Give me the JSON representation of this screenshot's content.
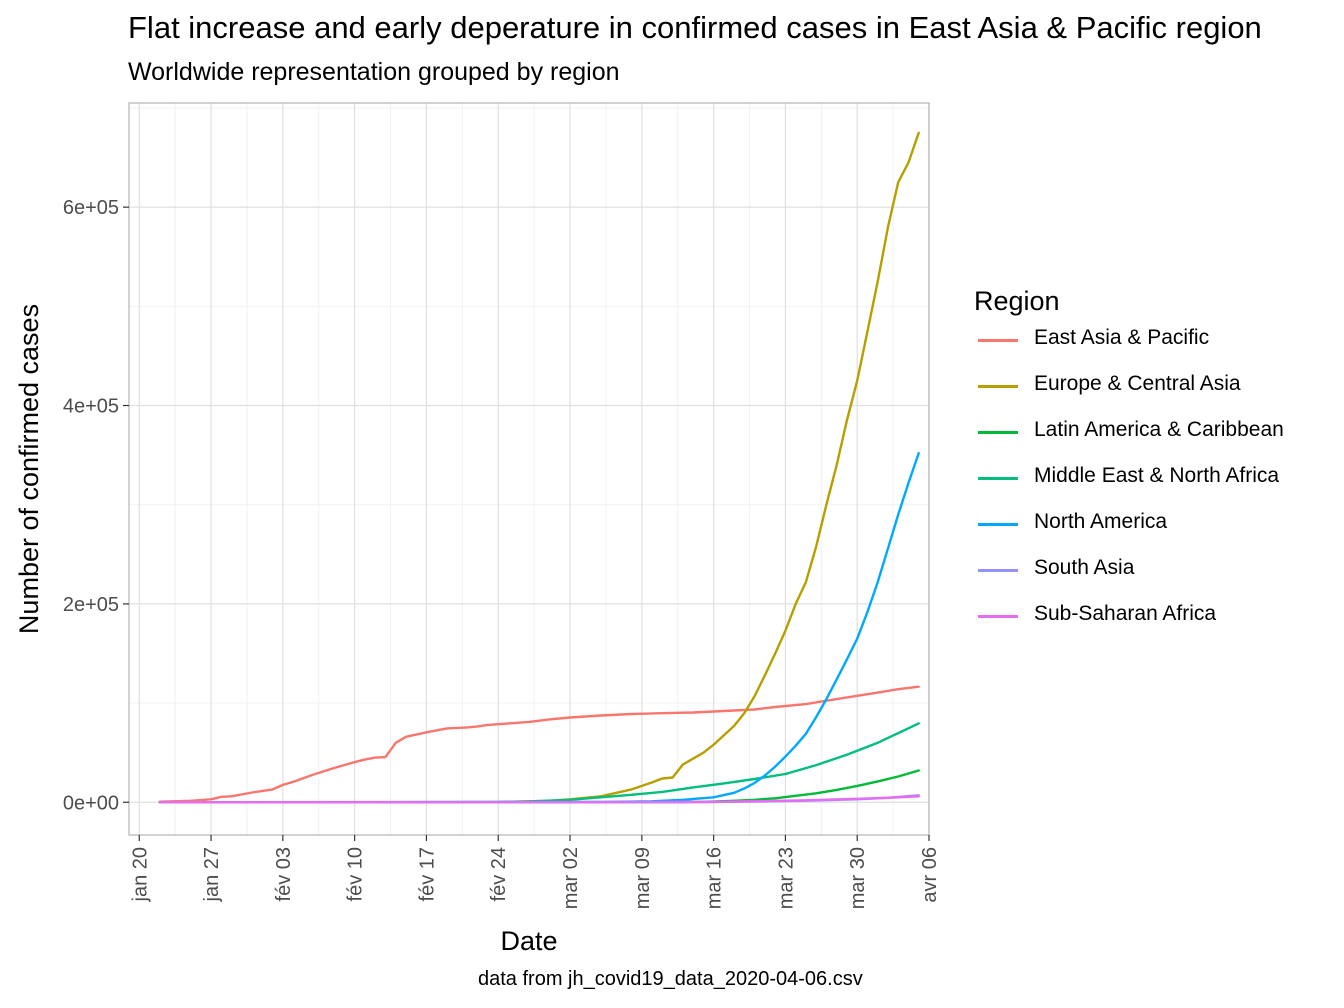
{
  "chart_data": {
    "type": "line",
    "title": "Flat increase and early deperature in confirmed cases in East Asia & Pacific region",
    "subtitle": "Worldwide representation grouped by region",
    "xlabel": "Date",
    "ylabel": "Number of confirmed cases",
    "caption": "data from jh_covid19_data_2020-04-06.csv",
    "legend_title": "Region",
    "legend_position": "right",
    "grid": true,
    "xlim": [
      "2020-01-19",
      "2020-04-06"
    ],
    "ylim": [
      -33000,
      705000
    ],
    "x_ticks": [
      "2020-01-20",
      "2020-01-27",
      "2020-02-03",
      "2020-02-10",
      "2020-02-17",
      "2020-02-24",
      "2020-03-02",
      "2020-03-09",
      "2020-03-16",
      "2020-03-23",
      "2020-03-30",
      "2020-04-06"
    ],
    "x_tick_labels": [
      "jan 20",
      "jan 27",
      "fév 03",
      "fév 10",
      "fév 17",
      "fév 24",
      "mar 02",
      "mar 09",
      "mar 16",
      "mar 23",
      "mar 30",
      "avr 06"
    ],
    "y_ticks": [
      0,
      200000,
      400000,
      600000
    ],
    "y_tick_labels": [
      "0e+00",
      "2e+05",
      "4e+05",
      "6e+05"
    ],
    "series": [
      {
        "name": "East Asia & Pacific",
        "color": "#F8766D",
        "points": [
          [
            "2020-01-22",
            550
          ],
          [
            "2020-01-25",
            1500
          ],
          [
            "2020-01-27",
            3000
          ],
          [
            "2020-01-28",
            5500
          ],
          [
            "2020-01-29",
            6000
          ],
          [
            "2020-01-31",
            9800
          ],
          [
            "2020-02-02",
            13000
          ],
          [
            "2020-02-03",
            17500
          ],
          [
            "2020-02-04",
            20500
          ],
          [
            "2020-02-06",
            28000
          ],
          [
            "2020-02-08",
            34500
          ],
          [
            "2020-02-10",
            40500
          ],
          [
            "2020-02-11",
            43000
          ],
          [
            "2020-02-12",
            45000
          ],
          [
            "2020-02-13",
            45500
          ],
          [
            "2020-02-14",
            60000
          ],
          [
            "2020-02-15",
            66000
          ],
          [
            "2020-02-17",
            70500
          ],
          [
            "2020-02-19",
            74500
          ],
          [
            "2020-02-21",
            75500
          ],
          [
            "2020-02-22",
            76500
          ],
          [
            "2020-02-23",
            78000
          ],
          [
            "2020-02-25",
            79500
          ],
          [
            "2020-02-27",
            81000
          ],
          [
            "2020-02-29",
            83500
          ],
          [
            "2020-03-02",
            85500
          ],
          [
            "2020-03-05",
            87500
          ],
          [
            "2020-03-08",
            89000
          ],
          [
            "2020-03-11",
            89800
          ],
          [
            "2020-03-14",
            90500
          ],
          [
            "2020-03-17",
            92000
          ],
          [
            "2020-03-20",
            93500
          ],
          [
            "2020-03-22",
            96000
          ],
          [
            "2020-03-25",
            99000
          ],
          [
            "2020-03-28",
            104000
          ],
          [
            "2020-03-31",
            109000
          ],
          [
            "2020-04-03",
            114000
          ],
          [
            "2020-04-05",
            116500
          ]
        ]
      },
      {
        "name": "Europe & Central Asia",
        "color": "#B79F00",
        "points": [
          [
            "2020-01-22",
            0
          ],
          [
            "2020-02-24",
            200
          ],
          [
            "2020-02-29",
            1500
          ],
          [
            "2020-03-02",
            3000
          ],
          [
            "2020-03-05",
            6000
          ],
          [
            "2020-03-08",
            13000
          ],
          [
            "2020-03-10",
            20000
          ],
          [
            "2020-03-11",
            24000
          ],
          [
            "2020-03-12",
            25000
          ],
          [
            "2020-03-13",
            38000
          ],
          [
            "2020-03-15",
            50000
          ],
          [
            "2020-03-16",
            58000
          ],
          [
            "2020-03-18",
            77000
          ],
          [
            "2020-03-19",
            90000
          ],
          [
            "2020-03-20",
            107000
          ],
          [
            "2020-03-21",
            128000
          ],
          [
            "2020-03-22",
            150000
          ],
          [
            "2020-03-23",
            173000
          ],
          [
            "2020-03-24",
            200000
          ],
          [
            "2020-03-25",
            222000
          ],
          [
            "2020-03-26",
            258000
          ],
          [
            "2020-03-27",
            300000
          ],
          [
            "2020-03-28",
            340000
          ],
          [
            "2020-03-29",
            385000
          ],
          [
            "2020-03-30",
            425000
          ],
          [
            "2020-03-31",
            475000
          ],
          [
            "2020-04-01",
            525000
          ],
          [
            "2020-04-02",
            580000
          ],
          [
            "2020-04-03",
            625000
          ],
          [
            "2020-04-04",
            645000
          ],
          [
            "2020-04-05",
            675000
          ]
        ]
      },
      {
        "name": "Latin America & Caribbean",
        "color": "#00BA38",
        "points": [
          [
            "2020-01-22",
            0
          ],
          [
            "2020-03-10",
            100
          ],
          [
            "2020-03-15",
            500
          ],
          [
            "2020-03-18",
            1500
          ],
          [
            "2020-03-20",
            2500
          ],
          [
            "2020-03-22",
            4000
          ],
          [
            "2020-03-24",
            6500
          ],
          [
            "2020-03-26",
            9000
          ],
          [
            "2020-03-28",
            12500
          ],
          [
            "2020-03-30",
            16500
          ],
          [
            "2020-04-01",
            21000
          ],
          [
            "2020-04-03",
            26000
          ],
          [
            "2020-04-05",
            32000
          ]
        ]
      },
      {
        "name": "Middle East & North Africa",
        "color": "#00BF7D",
        "points": [
          [
            "2020-01-22",
            0
          ],
          [
            "2020-02-24",
            300
          ],
          [
            "2020-02-27",
            800
          ],
          [
            "2020-03-02",
            2500
          ],
          [
            "2020-03-05",
            5000
          ],
          [
            "2020-03-08",
            7500
          ],
          [
            "2020-03-11",
            10500
          ],
          [
            "2020-03-14",
            15000
          ],
          [
            "2020-03-17",
            19000
          ],
          [
            "2020-03-20",
            23500
          ],
          [
            "2020-03-23",
            28500
          ],
          [
            "2020-03-26",
            37500
          ],
          [
            "2020-03-29",
            48000
          ],
          [
            "2020-04-01",
            60000
          ],
          [
            "2020-04-05",
            79500
          ]
        ]
      },
      {
        "name": "North America",
        "color": "#00A9FF",
        "points": [
          [
            "2020-01-22",
            0
          ],
          [
            "2020-03-05",
            300
          ],
          [
            "2020-03-10",
            1000
          ],
          [
            "2020-03-13",
            2500
          ],
          [
            "2020-03-16",
            5000
          ],
          [
            "2020-03-18",
            9500
          ],
          [
            "2020-03-19",
            14000
          ],
          [
            "2020-03-20",
            19500
          ],
          [
            "2020-03-21",
            27000
          ],
          [
            "2020-03-22",
            36000
          ],
          [
            "2020-03-23",
            46000
          ],
          [
            "2020-03-24",
            57000
          ],
          [
            "2020-03-25",
            69000
          ],
          [
            "2020-03-26",
            86000
          ],
          [
            "2020-03-27",
            104000
          ],
          [
            "2020-03-28",
            124000
          ],
          [
            "2020-03-29",
            144000
          ],
          [
            "2020-03-30",
            165000
          ],
          [
            "2020-03-31",
            192000
          ],
          [
            "2020-04-01",
            222000
          ],
          [
            "2020-04-02",
            256000
          ],
          [
            "2020-04-03",
            290000
          ],
          [
            "2020-04-04",
            322000
          ],
          [
            "2020-04-05",
            352000
          ]
        ]
      },
      {
        "name": "South Asia",
        "color": "#9590FF",
        "points": [
          [
            "2020-01-22",
            0
          ],
          [
            "2020-03-15",
            300
          ],
          [
            "2020-03-20",
            800
          ],
          [
            "2020-03-25",
            1600
          ],
          [
            "2020-03-30",
            3000
          ],
          [
            "2020-04-02",
            4500
          ],
          [
            "2020-04-05",
            7000
          ]
        ]
      },
      {
        "name": "Sub-Saharan Africa",
        "color": "#E76BF3",
        "points": [
          [
            "2020-01-22",
            0
          ],
          [
            "2020-03-10",
            100
          ],
          [
            "2020-03-15",
            300
          ],
          [
            "2020-03-20",
            1000
          ],
          [
            "2020-03-25",
            2000
          ],
          [
            "2020-03-30",
            3500
          ],
          [
            "2020-04-02",
            4500
          ],
          [
            "2020-04-05",
            6000
          ]
        ]
      }
    ]
  }
}
